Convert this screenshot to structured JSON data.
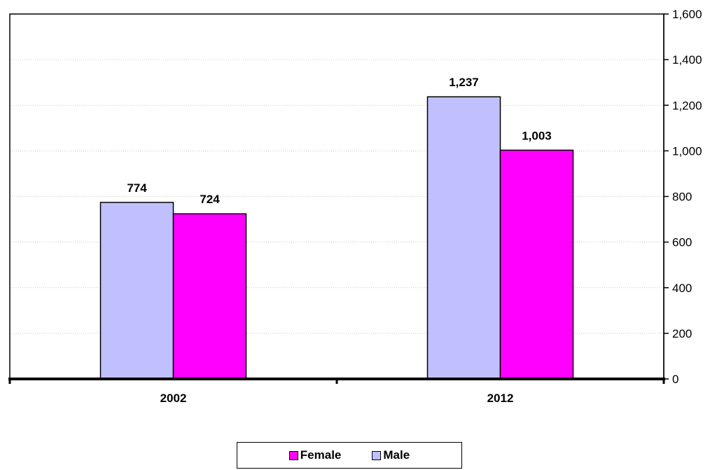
{
  "chart_data": {
    "type": "bar",
    "categories": [
      "2002",
      "2012"
    ],
    "series": [
      {
        "name": "Male",
        "values": [
          774,
          1237
        ],
        "color": "#c0c0ff"
      },
      {
        "name": "Female",
        "values": [
          724,
          1003
        ],
        "color": "#ff00ff"
      }
    ],
    "data_labels": [
      [
        "774",
        "1,237"
      ],
      [
        "724",
        "1,003"
      ]
    ],
    "y_ticks": [
      0,
      200,
      400,
      600,
      800,
      1000,
      1200,
      1400,
      1600
    ],
    "y_tick_labels": [
      "0",
      "200",
      "400",
      "600",
      "800",
      "1,000",
      "1,200",
      "1,400",
      "1,600"
    ],
    "ylim": [
      0,
      1600
    ],
    "y_axis_side": "right",
    "grid": true,
    "legend_placement": "bottom",
    "legend_order": [
      "Female",
      "Male"
    ]
  },
  "legend": {
    "items": [
      {
        "label": "Female",
        "color": "#ff00ff"
      },
      {
        "label": "Male",
        "color": "#c0c0ff"
      }
    ]
  }
}
